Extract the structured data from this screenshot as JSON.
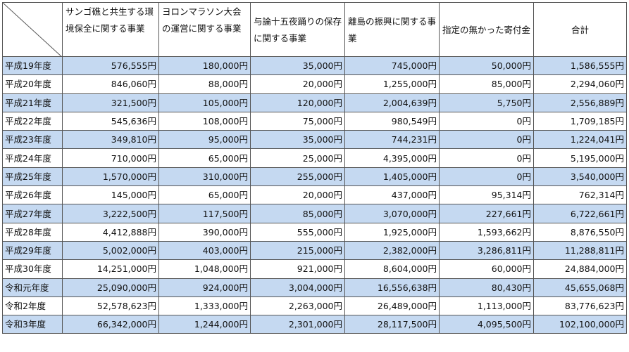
{
  "table": {
    "headers": [
      "サンゴ礁と共生する環境保全に関する事業",
      "ヨロンマラソン大会の運営に関する事業",
      "与論十五夜踊りの保存に関する事業",
      "離島の振興に関する事業",
      "指定の無かった寄付金",
      "合計"
    ],
    "rows": [
      {
        "year": "平成19年度",
        "values": [
          "576,555円",
          "180,000円",
          "35,000円",
          "745,000円",
          "50,000円",
          "1,586,555円"
        ]
      },
      {
        "year": "平成20年度",
        "values": [
          "846,060円",
          "88,000円",
          "20,000円",
          "1,255,000円",
          "85,000円",
          "2,294,060円"
        ]
      },
      {
        "year": "平成21年度",
        "values": [
          "321,500円",
          "105,000円",
          "120,000円",
          "2,004,639円",
          "5,750円",
          "2,556,889円"
        ]
      },
      {
        "year": "平成22年度",
        "values": [
          "545,636円",
          "108,000円",
          "75,000円",
          "980,549円",
          "0円",
          "1,709,185円"
        ]
      },
      {
        "year": "平成23年度",
        "values": [
          "349,810円",
          "95,000円",
          "35,000円",
          "744,231円",
          "0円",
          "1,224,041円"
        ]
      },
      {
        "year": "平成24年度",
        "values": [
          "710,000円",
          "65,000円",
          "25,000円",
          "4,395,000円",
          "0円",
          "5,195,000円"
        ]
      },
      {
        "year": "平成25年度",
        "values": [
          "1,570,000円",
          "310,000円",
          "255,000円",
          "1,405,000円",
          "0円",
          "3,540,000円"
        ]
      },
      {
        "year": "平成26年度",
        "values": [
          "145,000円",
          "65,000円",
          "20,000円",
          "437,000円",
          "95,314円",
          "762,314円"
        ]
      },
      {
        "year": "平成27年度",
        "values": [
          "3,222,500円",
          "117,500円",
          "85,000円",
          "3,070,000円",
          "227,661円",
          "6,722,661円"
        ]
      },
      {
        "year": "平成28年度",
        "values": [
          "4,412,888円",
          "390,000円",
          "555,000円",
          "1,925,000円",
          "1,593,662円",
          "8,876,550円"
        ]
      },
      {
        "year": "平成29年度",
        "values": [
          "5,002,000円",
          "403,000円",
          "215,000円",
          "2,382,000円",
          "3,286,811円",
          "11,288,811円"
        ]
      },
      {
        "year": "平成30年度",
        "values": [
          "14,251,000円",
          "1,048,000円",
          "921,000円",
          "8,604,000円",
          "60,000円",
          "24,884,000円"
        ]
      },
      {
        "year": "令和元年度",
        "values": [
          "25,090,000円",
          "924,000円",
          "3,004,000円",
          "16,556,638円",
          "80,430円",
          "45,655,068円"
        ]
      },
      {
        "year": "令和2年度",
        "values": [
          "52,578,623円",
          "1,333,000円",
          "2,263,000円",
          "26,489,000円",
          "1,113,000円",
          "83,776,623円"
        ]
      },
      {
        "year": "令和3年度",
        "values": [
          "66,342,000円",
          "1,244,000円",
          "2,301,000円",
          "28,117,500円",
          "4,095,500円",
          "102,100,000円"
        ]
      }
    ]
  },
  "colors": {
    "row_shade": "#c5d9f1",
    "border": "#555555"
  }
}
